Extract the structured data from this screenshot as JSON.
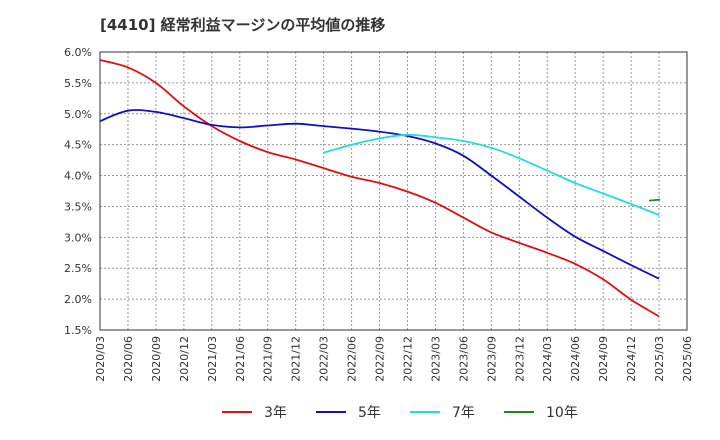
{
  "chart_data": {
    "type": "line",
    "title": "[4410]  経常利益マージンの平均値の推移",
    "xlabel": "",
    "ylabel": "",
    "ylim": [
      1.5,
      6.0
    ],
    "y_ticks": [
      "6.0%",
      "5.5%",
      "5.0%",
      "4.5%",
      "4.0%",
      "3.5%",
      "3.0%",
      "2.5%",
      "2.0%",
      "1.5%"
    ],
    "y_tick_values": [
      6.0,
      5.5,
      5.0,
      4.5,
      4.0,
      3.5,
      3.0,
      2.5,
      2.0,
      1.5
    ],
    "categories": [
      "2020/03",
      "2020/06",
      "2020/09",
      "2020/12",
      "2021/03",
      "2021/06",
      "2021/09",
      "2021/12",
      "2022/03",
      "2022/06",
      "2022/09",
      "2022/12",
      "2023/03",
      "2023/06",
      "2023/09",
      "2023/12",
      "2024/03",
      "2024/06",
      "2024/09",
      "2024/12",
      "2025/03",
      "2025/06"
    ],
    "grid": true,
    "legend_position": "bottom",
    "series": [
      {
        "name": "3年",
        "color": "#dd1111",
        "values": [
          5.87,
          5.75,
          5.5,
          5.12,
          4.8,
          4.56,
          4.38,
          4.26,
          4.12,
          3.98,
          3.88,
          3.74,
          3.56,
          3.32,
          3.08,
          2.91,
          2.75,
          2.57,
          2.32,
          1.99,
          1.72,
          null
        ]
      },
      {
        "name": "5年",
        "color": "#1111bb",
        "values": [
          4.88,
          5.05,
          5.03,
          4.93,
          4.82,
          4.78,
          4.81,
          4.84,
          4.8,
          4.76,
          4.71,
          4.64,
          4.52,
          4.32,
          4.0,
          3.66,
          3.32,
          3.01,
          2.78,
          2.55,
          2.33,
          null
        ]
      },
      {
        "name": "7年",
        "color": "#22dddd",
        "values": [
          null,
          null,
          null,
          null,
          null,
          null,
          null,
          null,
          4.37,
          4.5,
          4.6,
          4.66,
          4.62,
          4.56,
          4.45,
          4.28,
          4.08,
          3.88,
          3.71,
          3.54,
          3.36,
          null
        ]
      },
      {
        "name": "10年",
        "color": "#228822",
        "values": [
          null,
          null,
          null,
          null,
          null,
          null,
          null,
          null,
          null,
          null,
          null,
          null,
          null,
          null,
          null,
          null,
          null,
          null,
          null,
          null,
          3.61,
          null
        ]
      }
    ]
  }
}
